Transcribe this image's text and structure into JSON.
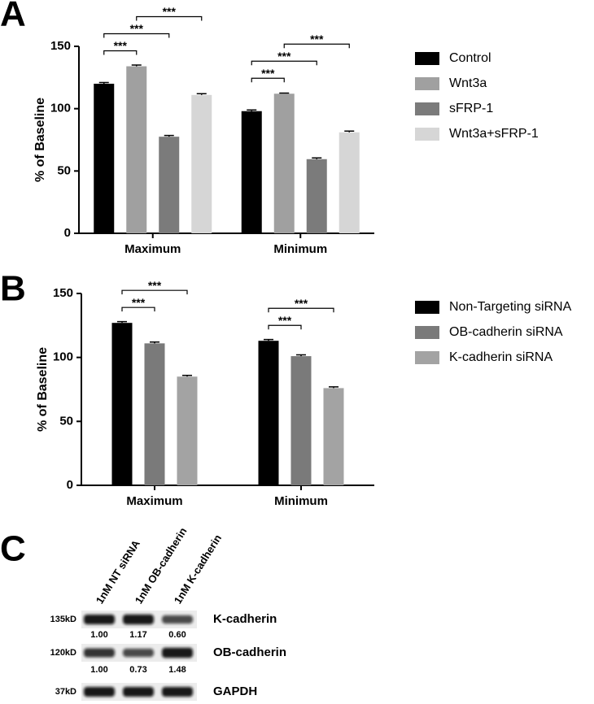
{
  "chart_data": [
    {
      "type": "bar",
      "panel_label": "A",
      "y_label": "% of Baseline",
      "categories": [
        "Maximum",
        "Minimum"
      ],
      "series": [
        {
          "name": "Control",
          "color": "#000000",
          "values": [
            120,
            98
          ],
          "errors": [
            1,
            1
          ]
        },
        {
          "name": "Wnt3a",
          "color": "#a0a0a0",
          "values": [
            134,
            112
          ],
          "errors": [
            1,
            0.5
          ]
        },
        {
          "name": "sFRP-1",
          "color": "#7b7b7b",
          "values": [
            77.5,
            59.5
          ],
          "errors": [
            1,
            1
          ]
        },
        {
          "name": "Wnt3a+sFRP-1",
          "color": "#d6d6d6",
          "values": [
            111,
            81
          ],
          "errors": [
            1,
            1
          ]
        }
      ],
      "ylim": [
        0,
        150
      ],
      "yticks": [
        0,
        50,
        100,
        150
      ],
      "significance": [
        {
          "label": "***",
          "category": 0,
          "pair": [
            0,
            1
          ]
        },
        {
          "label": "***",
          "category": 0,
          "pair": [
            0,
            2
          ]
        },
        {
          "label": "***",
          "category": 0,
          "pair": [
            1,
            3
          ]
        },
        {
          "label": "***",
          "category": 1,
          "pair": [
            0,
            1
          ]
        },
        {
          "label": "***",
          "category": 1,
          "pair": [
            0,
            2
          ]
        },
        {
          "label": "***",
          "category": 1,
          "pair": [
            1,
            3
          ]
        }
      ]
    },
    {
      "type": "bar",
      "panel_label": "B",
      "y_label": "% of Baseline",
      "categories": [
        "Maximum",
        "Minimum"
      ],
      "series": [
        {
          "name": "Non-Targeting siRNA",
          "color": "#000000",
          "values": [
            127,
            113
          ],
          "errors": [
            1,
            1
          ]
        },
        {
          "name": "OB-cadherin siRNA",
          "color": "#7a7a7a",
          "values": [
            111,
            101
          ],
          "errors": [
            1,
            1
          ]
        },
        {
          "name": "K-cadherin siRNA",
          "color": "#a3a3a3",
          "values": [
            85,
            76
          ],
          "errors": [
            1,
            1
          ]
        }
      ],
      "ylim": [
        0,
        150
      ],
      "yticks": [
        0,
        50,
        100,
        150
      ],
      "significance": [
        {
          "label": "***",
          "category": 0,
          "pair": [
            0,
            1
          ]
        },
        {
          "label": "***",
          "category": 0,
          "pair": [
            0,
            2
          ]
        },
        {
          "label": "***",
          "category": 1,
          "pair": [
            0,
            1
          ]
        },
        {
          "label": "***",
          "category": 1,
          "pair": [
            0,
            2
          ]
        }
      ]
    }
  ],
  "blot": {
    "panel_label": "C",
    "lanes": [
      "1nM NT siRNA",
      "1nM OB-cadherin",
      "1nM K-cadherin"
    ],
    "rows": [
      {
        "size": "135kD",
        "name": "K-cadherin",
        "values": [
          "1.00",
          "1.17",
          "0.60"
        ]
      },
      {
        "size": "120kD",
        "name": "OB-cadherin",
        "values": [
          "1.00",
          "0.73",
          "1.48"
        ]
      },
      {
        "size": "37kD",
        "name": "GAPDH"
      }
    ]
  }
}
